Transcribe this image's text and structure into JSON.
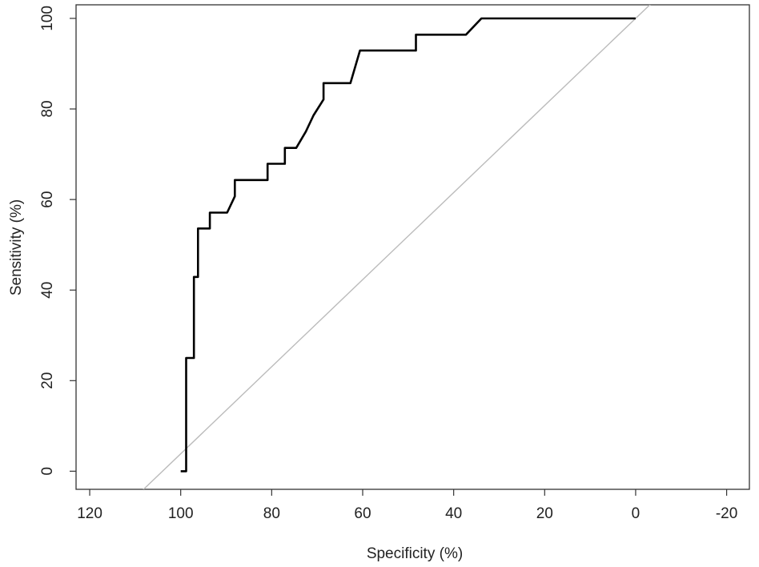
{
  "chart_data": {
    "type": "line",
    "title": "",
    "xlabel": "Specificity (%)",
    "ylabel": "Sensitivity (%)",
    "x_reversed": true,
    "xlim": [
      123,
      -25
    ],
    "ylim": [
      -4,
      103
    ],
    "x_ticks": [
      120,
      100,
      80,
      60,
      40,
      20,
      0,
      -20
    ],
    "y_ticks": [
      0,
      20,
      40,
      60,
      80,
      100
    ],
    "grid": false,
    "reference_line": {
      "name": "",
      "color": "#bbbbbb",
      "points": [
        [
          104,
          0
        ],
        [
          0,
          100
        ]
      ]
    },
    "series": [
      {
        "name": "",
        "color": "#000000",
        "x": [
          100,
          98.8,
          98.8,
          97.1,
          97.1,
          96.2,
          96.2,
          93.6,
          93.6,
          89.8,
          88.1,
          88.1,
          80.9,
          80.9,
          79.2,
          77.1,
          77.1,
          74.6,
          72.5,
          70.8,
          68.6,
          68.6,
          62.7,
          60.6,
          48.3,
          48.3,
          37.3,
          33.9,
          0
        ],
        "y": [
          0,
          0,
          25,
          25,
          42.9,
          42.9,
          53.6,
          53.6,
          57.1,
          57.1,
          60.7,
          64.3,
          64.3,
          67.9,
          67.9,
          67.9,
          71.4,
          71.4,
          75,
          78.6,
          82.1,
          85.7,
          85.7,
          92.9,
          92.9,
          96.4,
          96.4,
          100,
          100
        ]
      }
    ]
  }
}
